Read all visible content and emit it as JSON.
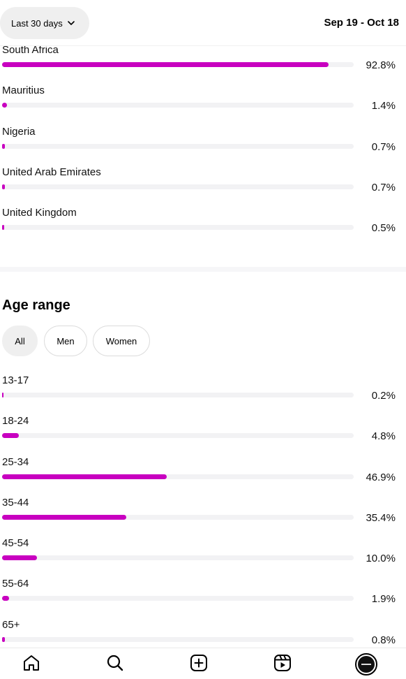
{
  "header": {
    "range_label": "Last 30 days",
    "date_range": "Sep 19 - Oct 18"
  },
  "locations": [
    {
      "name": "South Africa",
      "value": 92.8,
      "display": "92.8%"
    },
    {
      "name": "Mauritius",
      "value": 1.4,
      "display": "1.4%"
    },
    {
      "name": "Nigeria",
      "value": 0.7,
      "display": "0.7%"
    },
    {
      "name": "United Arab Emirates",
      "value": 0.7,
      "display": "0.7%"
    },
    {
      "name": "United Kingdom",
      "value": 0.5,
      "display": "0.5%"
    }
  ],
  "age": {
    "title": "Age range",
    "filters": [
      "All",
      "Men",
      "Women"
    ],
    "active_filter": "All",
    "rows": [
      {
        "name": "13-17",
        "value": 0.2,
        "display": "0.2%"
      },
      {
        "name": "18-24",
        "value": 4.8,
        "display": "4.8%"
      },
      {
        "name": "25-34",
        "value": 46.9,
        "display": "46.9%"
      },
      {
        "name": "35-44",
        "value": 35.4,
        "display": "35.4%"
      },
      {
        "name": "45-54",
        "value": 10.0,
        "display": "10.0%"
      },
      {
        "name": "55-64",
        "value": 1.9,
        "display": "1.9%"
      },
      {
        "name": "65+",
        "value": 0.8,
        "display": "0.8%"
      }
    ]
  },
  "colors": {
    "accent": "#c800c0",
    "track": "#f2f2f4"
  },
  "tabbar": {
    "icons": [
      "home-icon",
      "search-icon",
      "create-icon",
      "reels-icon",
      "profile-avatar"
    ]
  }
}
